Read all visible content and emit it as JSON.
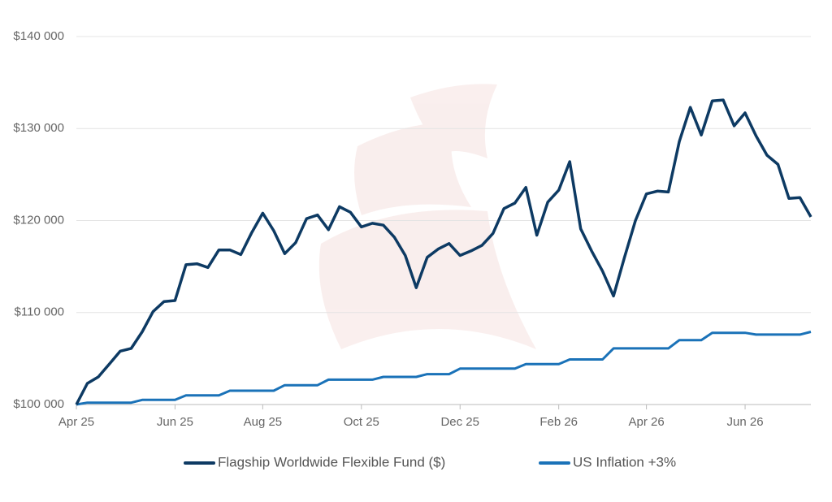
{
  "chart_data": {
    "type": "line",
    "categories": [
      "Apr 25",
      null,
      null,
      null,
      null,
      null,
      null,
      null,
      null,
      "Jun 25",
      null,
      null,
      null,
      null,
      null,
      null,
      null,
      "Aug 25",
      null,
      null,
      null,
      null,
      null,
      null,
      null,
      null,
      "Oct 25",
      null,
      null,
      null,
      null,
      null,
      null,
      null,
      null,
      "Dec 25",
      null,
      null,
      null,
      null,
      null,
      null,
      null,
      null,
      "Feb 26",
      null,
      null,
      null,
      null,
      null,
      null,
      null,
      "Apr 26",
      null,
      null,
      null,
      null,
      null,
      null,
      null,
      null,
      "Jun 26",
      null,
      null,
      null,
      null,
      null,
      null
    ],
    "series": [
      {
        "name": "Flagship Worldwide Flexible Fund ($)",
        "color": "#0d3a63",
        "values": [
          100000,
          102300,
          103000,
          104400,
          105800,
          106100,
          107900,
          110100,
          111200,
          111300,
          115200,
          115300,
          114900,
          116800,
          116800,
          116300,
          118700,
          120800,
          118900,
          116400,
          117600,
          120200,
          120600,
          119000,
          121500,
          120900,
          119300,
          119700,
          119500,
          118200,
          116200,
          112700,
          116000,
          116900,
          117500,
          116200,
          116700,
          117300,
          118600,
          121300,
          121900,
          123600,
          118400,
          122000,
          123300,
          126400,
          119100,
          116700,
          114500,
          111800,
          116000,
          120000,
          122900,
          123200,
          123100,
          128600,
          132300,
          129300,
          133000,
          133100,
          130300,
          131700,
          129200,
          127100,
          126100,
          122400,
          122500,
          120400
        ]
      },
      {
        "name": "US Inflation +3%",
        "color": "#1a72b8",
        "values": [
          100000,
          100200,
          100200,
          100200,
          100200,
          100200,
          100500,
          100500,
          100500,
          100500,
          101000,
          101000,
          101000,
          101000,
          101500,
          101500,
          101500,
          101500,
          101500,
          102100,
          102100,
          102100,
          102100,
          102700,
          102700,
          102700,
          102700,
          102700,
          103000,
          103000,
          103000,
          103000,
          103300,
          103300,
          103300,
          103900,
          103900,
          103900,
          103900,
          103900,
          103900,
          104400,
          104400,
          104400,
          104400,
          104900,
          104900,
          104900,
          104900,
          106100,
          106100,
          106100,
          106100,
          106100,
          106100,
          107000,
          107000,
          107000,
          107800,
          107800,
          107800,
          107800,
          107600,
          107600,
          107600,
          107600,
          107600,
          107900
        ]
      }
    ],
    "ylim": [
      100000,
      140000
    ],
    "yticks": [
      {
        "value": 100000,
        "label": "$100 000"
      },
      {
        "value": 110000,
        "label": "$110 000"
      },
      {
        "value": 120000,
        "label": "$120 000"
      },
      {
        "value": 130000,
        "label": "$130 000"
      },
      {
        "value": 140000,
        "label": "$140 000"
      }
    ],
    "grid": true,
    "legend": "bottom"
  }
}
